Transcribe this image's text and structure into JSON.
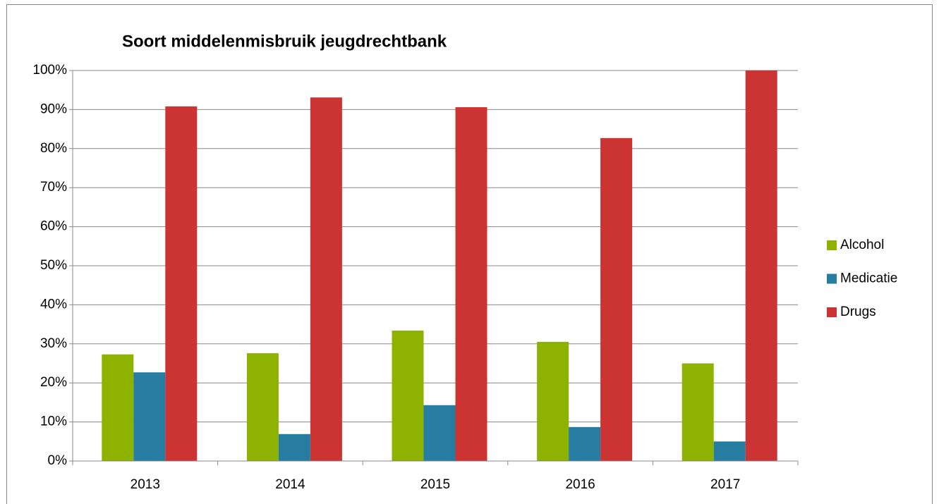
{
  "chart_data": {
    "type": "bar",
    "title": "Soort middelenmisbruik jeugdrechtbank",
    "categories": [
      "2013",
      "2014",
      "2015",
      "2016",
      "2017"
    ],
    "series": [
      {
        "name": "Alcohol",
        "color": "#8db200",
        "values": [
          27.3,
          27.6,
          33.4,
          30.5,
          25
        ]
      },
      {
        "name": "Medicatie",
        "color": "#277da1",
        "values": [
          22.7,
          6.9,
          14.3,
          8.7,
          5
        ]
      },
      {
        "name": "Drugs",
        "color": "#cc3333",
        "values": [
          90.8,
          93.1,
          90.6,
          82.7,
          100
        ]
      }
    ],
    "ylim": [
      0,
      100
    ],
    "yticks": [
      {
        "value": 0,
        "label": "0%"
      },
      {
        "value": 10,
        "label": "10%"
      },
      {
        "value": 20,
        "label": "20%"
      },
      {
        "value": 30,
        "label": "30%"
      },
      {
        "value": 40,
        "label": "40%"
      },
      {
        "value": 50,
        "label": "50%"
      },
      {
        "value": 60,
        "label": "60%"
      },
      {
        "value": 70,
        "label": "70%"
      },
      {
        "value": 80,
        "label": "80%"
      },
      {
        "value": 90,
        "label": "90%"
      },
      {
        "value": 100,
        "label": "100%"
      }
    ],
    "grid": true,
    "legend": "right"
  }
}
